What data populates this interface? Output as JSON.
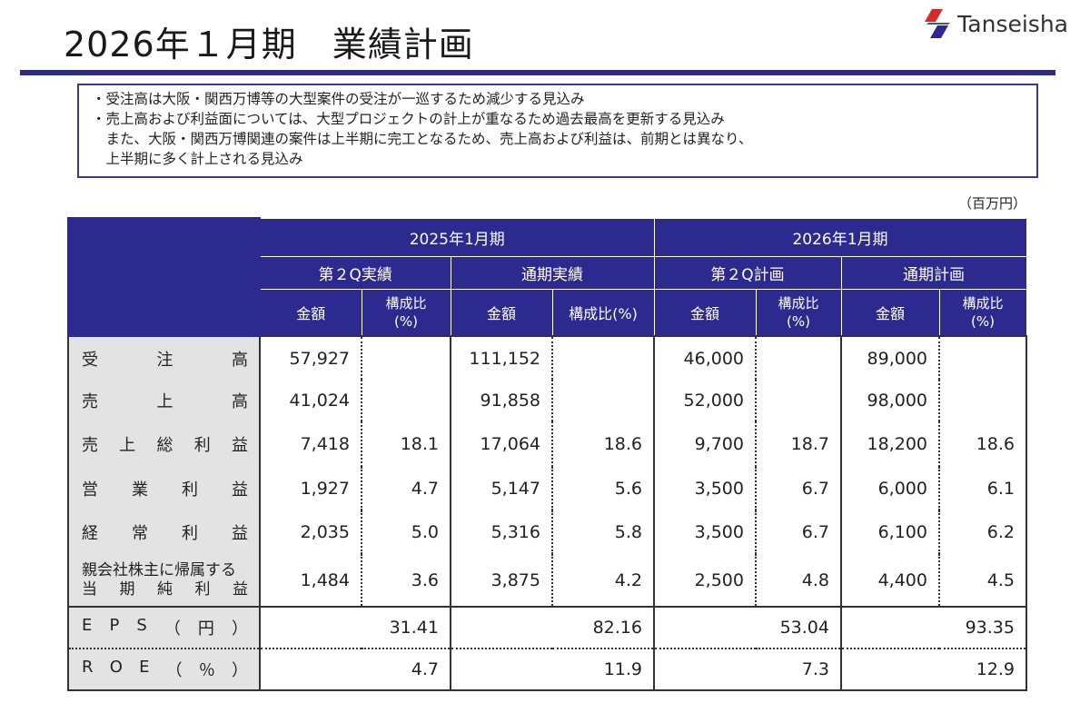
{
  "header": {
    "title": "2026年１月期　業績計画",
    "logo_text": "Tanseisha"
  },
  "notes": [
    "・受注高は大阪・関西万博等の大型案件の受注が一巡するため減少する見込み",
    "・売上高および利益面については、大型プロジェクトの計上が重なるため過去最高を更新する見込み",
    "　また、大阪・関西万博関連の案件は上半期に完工となるため、売上高および利益は、前期とは異なり、",
    "　上半期に多く計上される見込み"
  ],
  "unit": "（百万円）",
  "table": {
    "years": [
      "2025年1月期",
      "2026年1月期"
    ],
    "periods": [
      "第２Q実績",
      "通期実績",
      "第２Q計画",
      "通期計画"
    ],
    "col_amount": "金額",
    "col_ratio_1": "構成比",
    "col_ratio_2": "(%)",
    "col_ratio_inline": "構成比(%)",
    "rows": [
      {
        "label": [
          "受",
          "注",
          "高"
        ],
        "values": [
          "57,927",
          "",
          "111,152",
          "",
          "46,000",
          "",
          "89,000",
          ""
        ]
      },
      {
        "label": [
          "売",
          "上",
          "高"
        ],
        "values": [
          "41,024",
          "",
          "91,858",
          "",
          "52,000",
          "",
          "98,000",
          ""
        ]
      },
      {
        "label": [
          "売",
          "上",
          "総",
          "利",
          "益"
        ],
        "values": [
          "7,418",
          "18.1",
          "17,064",
          "18.6",
          "9,700",
          "18.7",
          "18,200",
          "18.6"
        ]
      },
      {
        "label": [
          "営",
          "業",
          "利",
          "益"
        ],
        "values": [
          "1,927",
          "4.7",
          "5,147",
          "5.6",
          "3,500",
          "6.7",
          "6,000",
          "6.1"
        ]
      },
      {
        "label": [
          "経",
          "常",
          "利",
          "益"
        ],
        "values": [
          "2,035",
          "5.0",
          "5,316",
          "5.8",
          "3,500",
          "6.7",
          "6,100",
          "6.2"
        ]
      },
      {
        "label_line1": "親会社株主に帰属する",
        "label": [
          "当",
          "期",
          "純",
          "利",
          "益"
        ],
        "values": [
          "1,484",
          "3.6",
          "3,875",
          "4.2",
          "2,500",
          "4.8",
          "4,400",
          "4.5"
        ]
      }
    ],
    "eps": {
      "label": [
        "E",
        "P",
        "S",
        "（",
        "円",
        "）"
      ],
      "values": [
        "31.41",
        "82.16",
        "53.04",
        "93.35"
      ]
    },
    "roe": {
      "label": [
        "R",
        "O",
        "E",
        "（",
        "％",
        "）"
      ],
      "values": [
        "4.7",
        "11.9",
        "7.3",
        "12.9"
      ]
    }
  },
  "colors": {
    "header_bg": "#2d2a8f",
    "label_bg": "#e3e3e3"
  }
}
